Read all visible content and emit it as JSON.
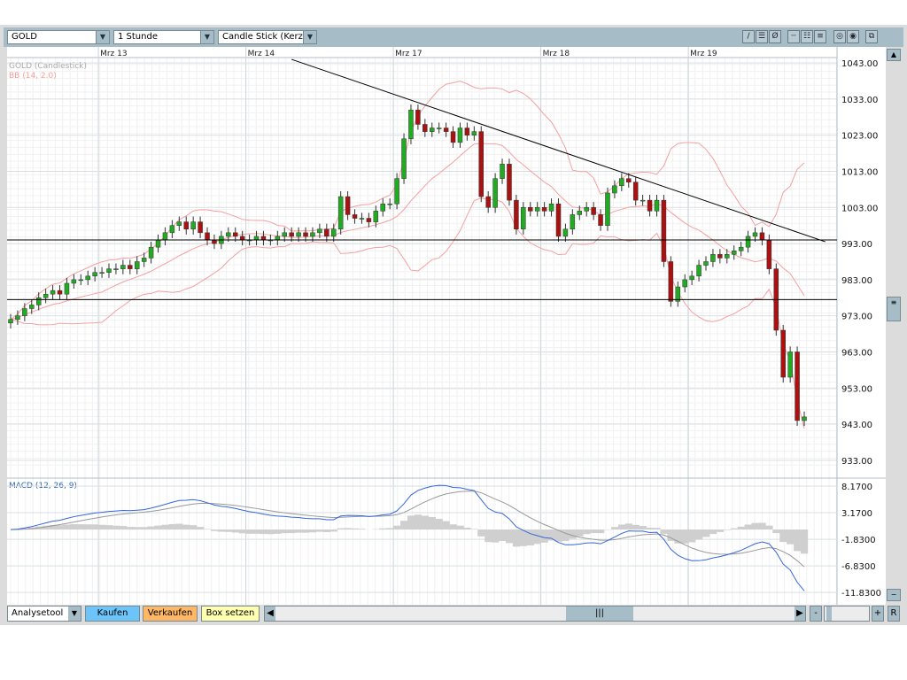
{
  "toolbar": {
    "symbol": "GOLD",
    "interval": "1 Stunde",
    "chart_type": "Candle Stick (Kerze",
    "tools": [
      "line-tool",
      "fib-tool",
      "channel-tool",
      "grid1",
      "grid2",
      "grid3",
      "zoom-in",
      "zoom-globe",
      "window"
    ]
  },
  "chart_data": {
    "type": "candlestick",
    "dates": [
      {
        "label": "Mrz 13",
        "index": 13
      },
      {
        "label": "Mrz 14",
        "index": 34
      },
      {
        "label": "Mrz 17",
        "index": 55
      },
      {
        "label": "Mrz 18",
        "index": 76
      },
      {
        "label": "Mrz 19",
        "index": 97
      }
    ],
    "price_ticks": [
      "1043.00",
      "1033.00",
      "1023.00",
      "1013.00",
      "1003.00",
      "993.00",
      "983.00",
      "973.00",
      "963.00",
      "953.00",
      "943.00",
      "933.00"
    ],
    "price_range": [
      931,
      1044.5
    ],
    "macd_ticks": [
      "8.1700",
      "3.1700",
      "-1.8300",
      "-6.8300",
      "-11.8300"
    ],
    "macd_range": [
      -13.8,
      9.5
    ],
    "legend": {
      "main": "GOLD (Candlestick)",
      "bb": "BB (14, 2.0)",
      "macd": "MACD (12, 26, 9)"
    },
    "closes": [
      972,
      973,
      975,
      976,
      978,
      979,
      980,
      979,
      982,
      983,
      983,
      984,
      985,
      985,
      986,
      986,
      987,
      986,
      988,
      989,
      992,
      994,
      996,
      998,
      999,
      997,
      999,
      996,
      994,
      993,
      995,
      996,
      995,
      994,
      994,
      995,
      994,
      994,
      995,
      996,
      995,
      996,
      995,
      996,
      997,
      995,
      997,
      1006,
      1001,
      1000,
      1000,
      999,
      1002,
      1004,
      1004,
      1011,
      1022,
      1030,
      1026,
      1024,
      1025,
      1025,
      1024,
      1021,
      1025,
      1023,
      1024,
      1006,
      1003,
      1011,
      1015,
      1005,
      997,
      1003,
      1002,
      1003,
      1002,
      1004,
      995,
      997,
      1001,
      1002,
      1003,
      1001,
      998,
      1007,
      1009,
      1011,
      1010,
      1005,
      1005,
      1002,
      1005,
      988,
      977,
      981,
      983,
      984,
      987,
      988,
      990,
      989,
      990,
      991,
      992,
      995,
      996,
      994,
      986,
      969,
      956,
      963,
      944,
      945
    ],
    "drawings": {
      "horizontal": [
        994,
        977.5
      ],
      "trendline": [
        [
          40,
          1044
        ],
        [
          116,
          993.5
        ]
      ]
    },
    "colors": {
      "up": "#22aa22",
      "down": "#aa1111",
      "bb": "#f4a0a0",
      "macd": "#3366dd",
      "signal": "#999999",
      "hist": "#cfcfcf"
    }
  },
  "bottom": {
    "analysis": "Analysetool",
    "buy": "Kaufen",
    "sell": "Verkaufen",
    "box": "Box setzen",
    "reset": "R",
    "minus": "-",
    "plus": "+"
  }
}
